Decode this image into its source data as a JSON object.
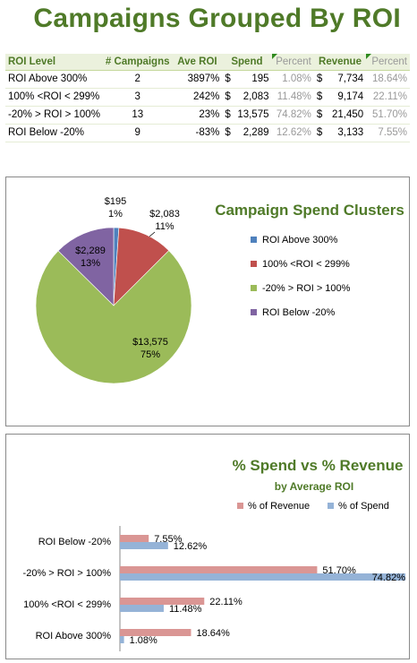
{
  "page": {
    "title": "Campaigns Grouped By ROI"
  },
  "table": {
    "headers": [
      "ROI Level",
      "# Campaigns",
      "Ave ROI",
      "Spend",
      "Percent",
      "Revenue",
      "Percent"
    ],
    "rows": [
      {
        "level": "ROI Above 300%",
        "campaigns": "2",
        "ave_roi": "3897%",
        "spend": "195",
        "spend_pct": "1.08%",
        "revenue": "7,734",
        "revenue_pct": "18.64%"
      },
      {
        "level": "100% <ROI < 299%",
        "campaigns": "3",
        "ave_roi": "242%",
        "spend": "2,083",
        "spend_pct": "11.48%",
        "revenue": "9,174",
        "revenue_pct": "22.11%"
      },
      {
        "level": "-20% > ROI > 100%",
        "campaigns": "13",
        "ave_roi": "23%",
        "spend": "13,575",
        "spend_pct": "74.82%",
        "revenue": "21,450",
        "revenue_pct": "51.70%"
      },
      {
        "level": "ROI Below -20%",
        "campaigns": "9",
        "ave_roi": "-83%",
        "spend": "2,289",
        "spend_pct": "12.62%",
        "revenue": "3,133",
        "revenue_pct": "7.55%"
      }
    ],
    "currency_symbol": "$"
  },
  "chart_data": [
    {
      "type": "pie",
      "title": "Campaign Spend Clusters",
      "categories": [
        "ROI Above 300%",
        "100% <ROI < 299%",
        "-20% > ROI > 100%",
        "ROI Below -20%"
      ],
      "values": [
        195,
        2083,
        13575,
        2289
      ],
      "value_labels": [
        "$195",
        "$2,083",
        "$13,575",
        "$2,289"
      ],
      "percent_labels": [
        "1%",
        "11%",
        "75%",
        "13%"
      ],
      "colors": [
        "#4f81bd",
        "#c0504d",
        "#9bbb59",
        "#8064a2"
      ],
      "legend_position": "right"
    },
    {
      "type": "bar",
      "orientation": "horizontal",
      "title": "% Spend vs % Revenue",
      "subtitle": "by Average ROI",
      "categories": [
        "ROI Below -20%",
        "-20% > ROI > 100%",
        "100% <ROI < 299%",
        "ROI Above 300%"
      ],
      "series": [
        {
          "name": "% of Revenue",
          "values": [
            7.55,
            51.7,
            22.11,
            18.64
          ],
          "labels": [
            "7.55%",
            "51.70%",
            "22.11%",
            "18.64%"
          ],
          "color": "#da9694"
        },
        {
          "name": "% of Spend",
          "values": [
            12.62,
            74.82,
            11.48,
            1.08
          ],
          "labels": [
            "12.62%",
            "74.82%",
            "11.48%",
            "1.08%"
          ],
          "color": "#95b3d7"
        }
      ],
      "xlim": [
        0,
        74.82
      ],
      "legend_position": "top"
    }
  ]
}
